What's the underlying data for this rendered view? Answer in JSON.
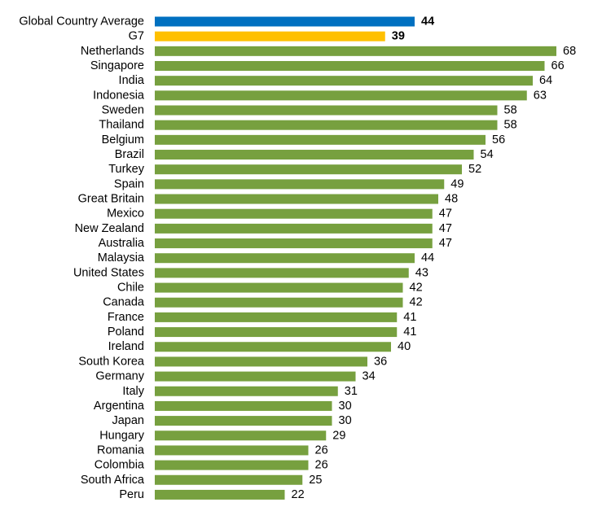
{
  "chart_data": {
    "type": "bar",
    "orientation": "horizontal",
    "title": "",
    "xlabel": "",
    "ylabel": "",
    "xlim": [
      0,
      68
    ],
    "grid": false,
    "legend": "none",
    "colors": {
      "global_average": "#0070C0",
      "g7": "#FFC000",
      "country": "#77A03F"
    },
    "categories": [
      "Global Country Average",
      "G7",
      "Netherlands",
      "Singapore",
      "India",
      "Indonesia",
      "Sweden",
      "Thailand",
      "Belgium",
      "Brazil",
      "Turkey",
      "Spain",
      "Great Britain",
      "Mexico",
      "New Zealand",
      "Australia",
      "Malaysia",
      "United States",
      "Chile",
      "Canada",
      "France",
      "Poland",
      "Ireland",
      "South Korea",
      "Germany",
      "Italy",
      "Argentina",
      "Japan",
      "Hungary",
      "Romania",
      "Colombia",
      "South Africa",
      "Peru"
    ],
    "values": [
      44,
      39,
      68,
      66,
      64,
      63,
      58,
      58,
      56,
      54,
      52,
      49,
      48,
      47,
      47,
      47,
      44,
      43,
      42,
      42,
      41,
      41,
      40,
      36,
      34,
      31,
      30,
      30,
      29,
      26,
      26,
      25,
      22
    ],
    "highlight": {
      "Global Country Average": "global_average",
      "G7": "g7"
    }
  }
}
